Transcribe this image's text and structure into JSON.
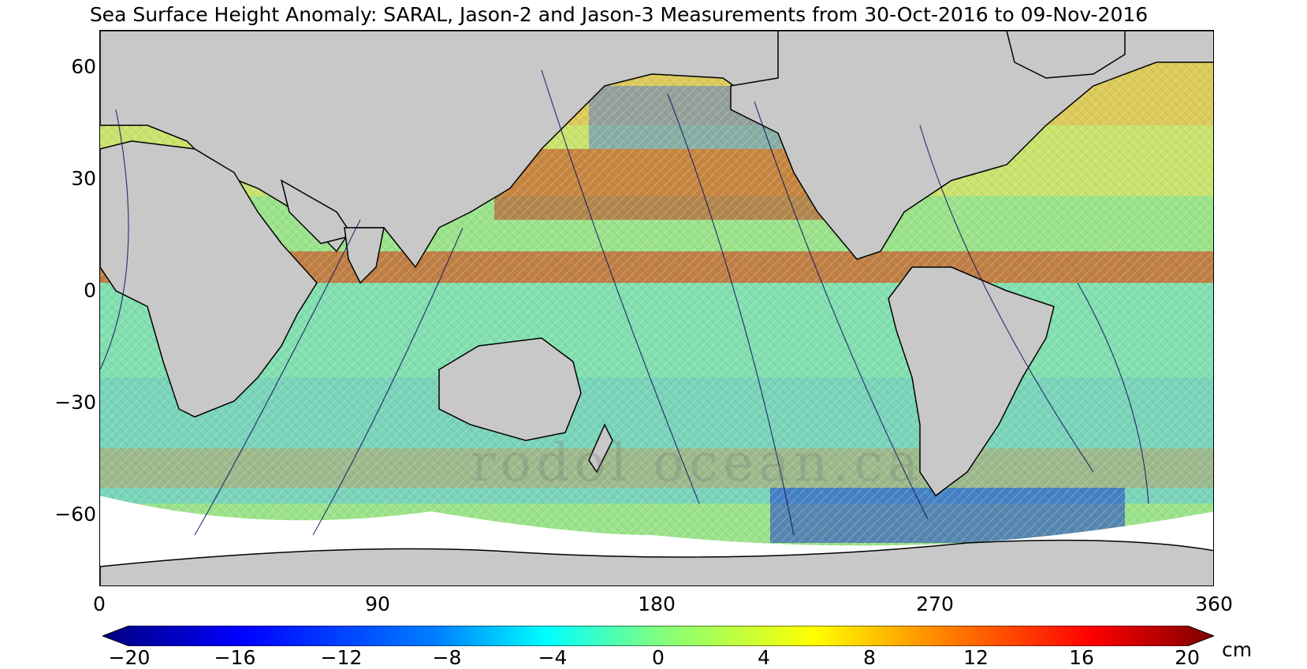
{
  "title": "Sea Surface Height Anomaly: SARAL, Jason-2 and Jason-3 Measurements from 30-Oct-2016 to 09-Nov-2016",
  "watermark": "rodol ocean.ca",
  "map": {
    "land_color": "#c8c8c8",
    "no_data_color": "#ffffff",
    "lon_range": [
      0,
      360
    ],
    "lat_range": [
      -70,
      70
    ]
  },
  "x_ticks": [
    "0",
    "90",
    "180",
    "270",
    "360"
  ],
  "y_ticks": [
    "60",
    "30",
    "0",
    "−30",
    "−60"
  ],
  "colorbar": {
    "ticks": [
      "−20",
      "−16",
      "−12",
      "−8",
      "−4",
      "0",
      "4",
      "8",
      "12",
      "16",
      "20"
    ],
    "unit": "cm",
    "colors": [
      "#00007f",
      "#0000ff",
      "#007fff",
      "#00ffff",
      "#7fff7f",
      "#ffff00",
      "#ff7f00",
      "#ff0000",
      "#7f0000"
    ]
  }
}
